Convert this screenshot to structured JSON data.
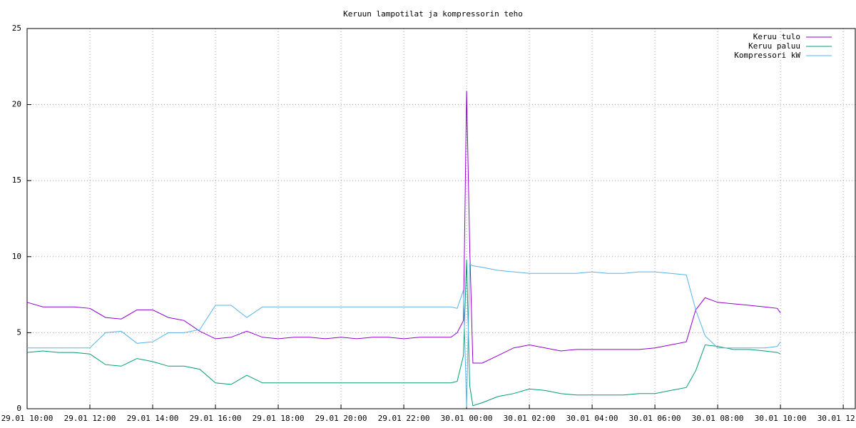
{
  "chart_data": {
    "type": "line",
    "title": "Keruun lampotilat ja kompressorin teho",
    "x": [
      "29.01 10:00",
      "29.01 10:30",
      "29.01 11:00",
      "29.01 11:30",
      "29.01 12:00",
      "29.01 12:30",
      "29.01 13:00",
      "29.01 13:30",
      "29.01 14:00",
      "29.01 14:30",
      "29.01 15:00",
      "29.01 15:30",
      "29.01 16:00",
      "29.01 16:30",
      "29.01 17:00",
      "29.01 17:30",
      "29.01 18:00",
      "29.01 18:30",
      "29.01 19:00",
      "29.01 19:30",
      "29.01 20:00",
      "29.01 20:30",
      "29.01 21:00",
      "29.01 21:30",
      "29.01 22:00",
      "29.01 22:30",
      "29.01 23:00",
      "29.01 23:30",
      "29.01 23:42",
      "29.01 23:54",
      "30.01 00:00",
      "30.01 00:06",
      "30.01 00:12",
      "30.01 00:30",
      "30.01 01:00",
      "30.01 01:30",
      "30.01 02:00",
      "30.01 02:30",
      "30.01 03:00",
      "30.01 03:30",
      "30.01 04:00",
      "30.01 04:30",
      "30.01 05:00",
      "30.01 05:30",
      "30.01 06:00",
      "30.01 06:30",
      "30.01 07:00",
      "30.01 07:18",
      "30.01 07:36",
      "30.01 08:00",
      "30.01 08:30",
      "30.01 09:00",
      "30.01 09:30",
      "30.01 09:54",
      "30.01 10:00"
    ],
    "series": [
      {
        "name": "Keruu tulo",
        "color": "#9400d3",
        "values": [
          7.0,
          6.7,
          6.7,
          6.7,
          6.6,
          6.0,
          5.9,
          6.5,
          6.5,
          6.0,
          5.8,
          5.1,
          4.6,
          4.7,
          5.1,
          4.7,
          4.6,
          4.7,
          4.7,
          4.6,
          4.7,
          4.6,
          4.7,
          4.7,
          4.6,
          4.7,
          4.7,
          4.7,
          5.0,
          5.8,
          20.9,
          10.6,
          3.0,
          3.0,
          3.5,
          4.0,
          4.2,
          4.0,
          3.8,
          3.9,
          3.9,
          3.9,
          3.9,
          3.9,
          4.0,
          4.2,
          4.4,
          6.5,
          7.3,
          7.0,
          6.9,
          6.8,
          6.7,
          6.6,
          6.3
        ]
      },
      {
        "name": "Keruu paluu",
        "color": "#009e73",
        "values": [
          3.7,
          3.8,
          3.7,
          3.7,
          3.6,
          2.9,
          2.8,
          3.3,
          3.1,
          2.8,
          2.8,
          2.6,
          1.7,
          1.6,
          2.2,
          1.7,
          1.7,
          1.7,
          1.7,
          1.7,
          1.7,
          1.7,
          1.7,
          1.7,
          1.7,
          1.7,
          1.7,
          1.7,
          1.8,
          3.5,
          9.8,
          1.5,
          0.2,
          0.4,
          0.8,
          1.0,
          1.3,
          1.2,
          1.0,
          0.9,
          0.9,
          0.9,
          0.9,
          1.0,
          1.0,
          1.2,
          1.4,
          2.5,
          4.2,
          4.1,
          3.9,
          3.9,
          3.8,
          3.7,
          3.6
        ]
      },
      {
        "name": "Kompressori kW",
        "color": "#56b4e9",
        "values": [
          4.0,
          4.0,
          4.0,
          4.0,
          4.0,
          5.0,
          5.1,
          4.3,
          4.4,
          5.0,
          5.0,
          5.2,
          6.8,
          6.8,
          6.0,
          6.7,
          6.7,
          6.7,
          6.7,
          6.7,
          6.7,
          6.7,
          6.7,
          6.7,
          6.7,
          6.7,
          6.7,
          6.7,
          6.6,
          7.8,
          0.1,
          9.5,
          9.4,
          9.3,
          9.1,
          9.0,
          8.9,
          8.9,
          8.9,
          8.9,
          9.0,
          8.9,
          8.9,
          9.0,
          9.0,
          8.9,
          8.8,
          6.5,
          4.8,
          4.0,
          4.0,
          4.0,
          4.0,
          4.1,
          4.4
        ]
      }
    ],
    "xlim": [
      "29.01 10:00",
      "30.01 12:23"
    ],
    "xticks": [
      "29.01 10:00",
      "29.01 12:00",
      "29.01 14:00",
      "29.01 16:00",
      "29.01 18:00",
      "29.01 20:00",
      "29.01 22:00",
      "30.01 00:00",
      "30.01 02:00",
      "30.01 04:00",
      "30.01 06:00",
      "30.01 08:00",
      "30.01 10:00",
      "30.01 12:00"
    ],
    "ylim": [
      0,
      25
    ],
    "yticks": [
      0,
      5,
      10,
      15,
      20,
      25
    ],
    "grid": true,
    "legend": "top-right"
  }
}
